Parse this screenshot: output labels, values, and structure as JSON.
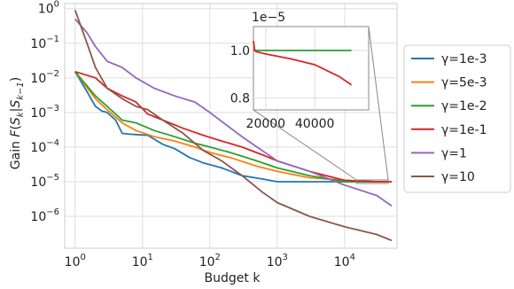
{
  "chart_data": {
    "type": "line",
    "xlabel": "Budget k",
    "ylabel": "Gain F(S_k|S_{k-1})",
    "ylabel_parts": {
      "prefix": "Gain ",
      "F": "F",
      "open": "(",
      "S": "S",
      "k": "k",
      "bar": "|",
      "S2": "S",
      "sub2": "k−1",
      "close": ")"
    },
    "xscale": "log",
    "yscale": "log",
    "xlim": [
      0.7,
      60000
    ],
    "ylim": [
      1.2e-07,
      1.4
    ],
    "grid": true,
    "legend_position": "right",
    "x_ticks": [
      {
        "value": 1,
        "base": "10",
        "exp": "0"
      },
      {
        "value": 10,
        "base": "10",
        "exp": "1"
      },
      {
        "value": 100,
        "base": "10",
        "exp": "2"
      },
      {
        "value": 1000,
        "base": "10",
        "exp": "3"
      },
      {
        "value": 10000,
        "base": "10",
        "exp": "4"
      }
    ],
    "y_ticks": [
      {
        "value": 1,
        "base": "10",
        "exp": "0"
      },
      {
        "value": 0.1,
        "base": "10",
        "exp": "−1"
      },
      {
        "value": 0.01,
        "base": "10",
        "exp": "−2"
      },
      {
        "value": 0.001,
        "base": "10",
        "exp": "−3"
      },
      {
        "value": 0.0001,
        "base": "10",
        "exp": "−4"
      },
      {
        "value": 1e-05,
        "base": "10",
        "exp": "−5"
      },
      {
        "value": 1e-06,
        "base": "10",
        "exp": "−6"
      }
    ],
    "series": [
      {
        "name": "γ=1e-3",
        "color": "#1f77b4",
        "x": [
          1,
          1.5,
          2,
          2.5,
          3,
          4,
          5,
          6,
          8,
          12,
          20,
          30,
          50,
          80,
          150,
          300,
          600,
          1000,
          3000,
          10000,
          30000,
          50000
        ],
        "y": [
          0.015,
          0.004,
          0.0015,
          0.0011,
          0.001,
          0.0006,
          0.00025,
          0.00024,
          0.00023,
          0.00022,
          0.00012,
          9e-05,
          5e-05,
          3.5e-05,
          2.5e-05,
          1.5e-05,
          1.2e-05,
          1e-05,
          1e-05,
          1e-05,
          1e-05,
          1e-05
        ]
      },
      {
        "name": "γ=5e-3",
        "color": "#ff7f0e",
        "x": [
          1,
          2,
          3,
          5,
          8,
          15,
          30,
          60,
          100,
          200,
          500,
          1000,
          3000,
          10000,
          30000,
          50000
        ],
        "y": [
          0.015,
          0.0025,
          0.0012,
          0.0005,
          0.0003,
          0.0002,
          0.00015,
          0.0001,
          7e-05,
          5e-05,
          2.8e-05,
          2e-05,
          1.3e-05,
          1.1e-05,
          1e-05,
          1e-05
        ]
      },
      {
        "name": "γ=1e-2",
        "color": "#2ca02c",
        "x": [
          1,
          2,
          3,
          5,
          8,
          15,
          30,
          60,
          100,
          200,
          500,
          1000,
          3000,
          10000,
          30000,
          50000
        ],
        "y": [
          0.015,
          0.003,
          0.0015,
          0.0006,
          0.0005,
          0.0003,
          0.0002,
          0.00013,
          0.0001,
          7e-05,
          4e-05,
          2.5e-05,
          1.5e-05,
          1e-05,
          1e-05,
          1e-05
        ]
      },
      {
        "name": "γ=1e-1",
        "color": "#d62728",
        "x": [
          1,
          2,
          3,
          5,
          8,
          12,
          20,
          40,
          80,
          150,
          300,
          600,
          1000,
          3000,
          10000,
          30000,
          50000
        ],
        "y": [
          0.015,
          0.01,
          0.005,
          0.003,
          0.002,
          0.0009,
          0.0006,
          0.00035,
          0.00022,
          0.00015,
          0.0001,
          6e-05,
          4e-05,
          2e-05,
          1.1e-05,
          1e-05,
          1e-05
        ]
      },
      {
        "name": "γ=1",
        "color": "#9467bd",
        "x": [
          1,
          1.5,
          2,
          3,
          5,
          8,
          15,
          30,
          60,
          100,
          300,
          1000,
          3000,
          10000,
          30000,
          50000
        ],
        "y": [
          0.5,
          0.2,
          0.08,
          0.03,
          0.02,
          0.01,
          0.005,
          0.003,
          0.002,
          0.001,
          0.0002,
          4e-05,
          2e-05,
          8e-06,
          4e-06,
          2e-06
        ]
      },
      {
        "name": "γ=10",
        "color": "#8c564b",
        "x": [
          1,
          1.5,
          2,
          3,
          5,
          8,
          12,
          20,
          40,
          80,
          150,
          300,
          600,
          1000,
          3000,
          10000,
          30000,
          50000
        ],
        "y": [
          0.9,
          0.1,
          0.02,
          0.005,
          0.0025,
          0.0015,
          0.0012,
          0.0006,
          0.00025,
          8e-05,
          4e-05,
          1.5e-05,
          5e-06,
          2.5e-06,
          1e-06,
          5e-07,
          3e-07,
          2e-07
        ]
      }
    ],
    "inset": {
      "scale_label": "1e−5",
      "xlim": [
        15000,
        62000
      ],
      "ylim": [
        0.75,
        1.1
      ],
      "x_ticks": [
        {
          "value": 20000,
          "label": "20000"
        },
        {
          "value": 40000,
          "label": "40000"
        }
      ],
      "y_ticks": [
        {
          "value": 1.0,
          "label": "1.0"
        },
        {
          "value": 0.8,
          "label": "0.8"
        }
      ],
      "series": [
        {
          "ref": 2,
          "x": [
            15000,
            55000
          ],
          "y": [
            1.0,
            1.0
          ]
        },
        {
          "ref": 3,
          "x": [
            15000,
            15500,
            16000,
            20000,
            30000,
            40000,
            50000,
            55000
          ],
          "y": [
            1.04,
            1.0,
            0.995,
            0.985,
            0.965,
            0.94,
            0.89,
            0.855
          ]
        }
      ]
    }
  }
}
